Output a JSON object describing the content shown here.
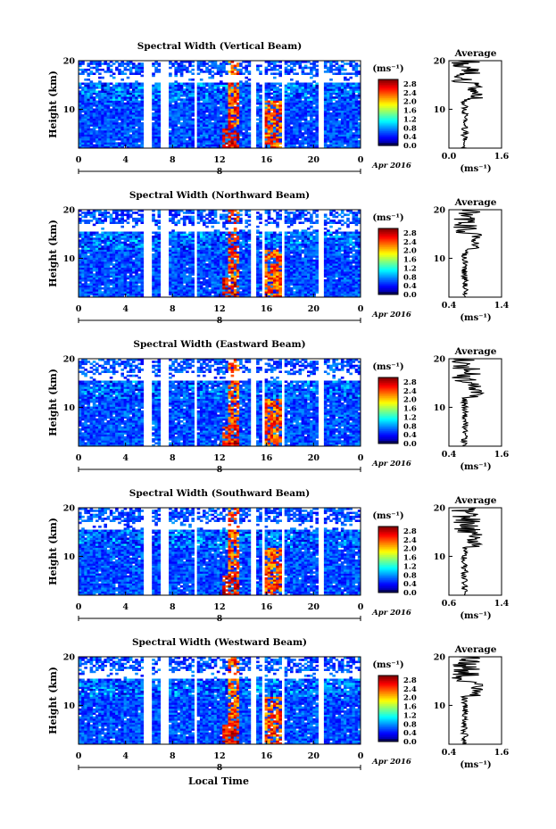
{
  "panels": [
    {
      "title": "Spectral Width (Vertical Beam)",
      "avg_ticks": [
        "0.0",
        "1.6"
      ],
      "avg_xlim": [
        0.0,
        1.6
      ]
    },
    {
      "title": "Spectral Width (Northward Beam)",
      "avg_ticks": [
        "0.4",
        "1.4"
      ],
      "avg_xlim": [
        0.4,
        1.4
      ]
    },
    {
      "title": "Spectral Width (Eastward Beam)",
      "avg_ticks": [
        "0.4",
        "1.6"
      ],
      "avg_xlim": [
        0.4,
        1.6
      ]
    },
    {
      "title": "Spectral Width (Southward Beam)",
      "avg_ticks": [
        "0.6",
        "1.4"
      ],
      "avg_xlim": [
        0.6,
        1.4
      ]
    },
    {
      "title": "Spectral Width (Westward Beam)",
      "avg_ticks": [
        "0.4",
        "1.6"
      ],
      "avg_xlim": [
        0.4,
        1.6
      ]
    }
  ],
  "ylabel": "Height (km)",
  "yticks": [
    "20",
    "10"
  ],
  "xticks": [
    "0",
    "4",
    "8",
    "12",
    "16",
    "20",
    "0"
  ],
  "date_day": "8",
  "date_label": "Apr 2016",
  "colorbar_unit": "(ms⁻¹)",
  "colorbar_ticks": [
    "2.8",
    "2.4",
    "2.0",
    "1.6",
    "1.2",
    "0.8",
    "0.4",
    "0.0"
  ],
  "avg_title": "Average",
  "avg_unit": "(ms⁻¹)",
  "xlabel": "Local Time",
  "chart_data": {
    "type": "heatmap",
    "x_range_hours": [
      0,
      24
    ],
    "y_range_km": [
      2,
      20
    ],
    "color_range": [
      0.0,
      3.0
    ],
    "data_gaps_hours": [
      [
        5.5,
        6.3
      ],
      [
        7.0,
        7.6
      ],
      [
        9.8,
        10.1
      ],
      [
        14.7,
        15.1
      ],
      [
        15.5,
        15.9
      ],
      [
        17.2,
        17.5
      ],
      [
        20.5,
        20.9
      ]
    ],
    "high_width_regions": [
      {
        "hours": [
          12.2,
          13.6
        ],
        "km": [
          2,
          6
        ],
        "approx_value": 2.6
      },
      {
        "hours": [
          12.8,
          13.6
        ],
        "km": [
          6,
          20
        ],
        "approx_value": 2.4
      },
      {
        "hours": [
          15.9,
          17.3
        ],
        "km": [
          2,
          12
        ],
        "approx_value": 2.4
      }
    ],
    "background_value_below_tropopause": 0.6,
    "average_profiles_km": [
      2,
      20
    ]
  }
}
